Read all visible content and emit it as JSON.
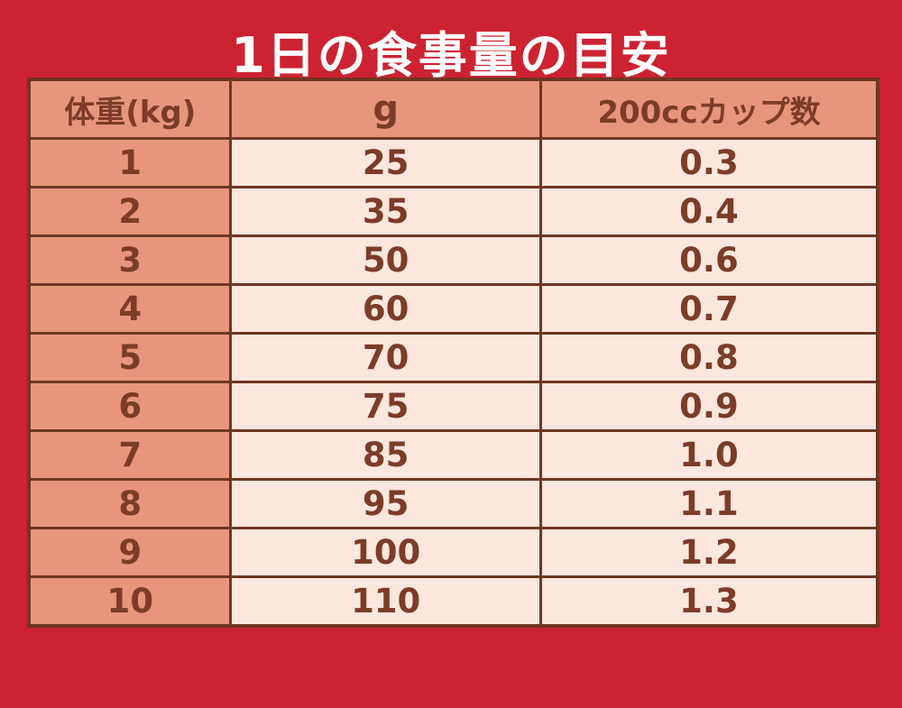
{
  "title": "1日の食事量の目安",
  "chart_data": {
    "type": "table",
    "title": "1日の食事量の目安",
    "columns": [
      "体重(kg)",
      "g",
      "200ccカップ数"
    ],
    "rows": [
      [
        "1",
        "25",
        "0.3"
      ],
      [
        "2",
        "35",
        "0.4"
      ],
      [
        "3",
        "50",
        "0.6"
      ],
      [
        "4",
        "60",
        "0.7"
      ],
      [
        "5",
        "70",
        "0.8"
      ],
      [
        "6",
        "75",
        "0.9"
      ],
      [
        "7",
        "85",
        "1.0"
      ],
      [
        "8",
        "95",
        "1.1"
      ],
      [
        "9",
        "100",
        "1.2"
      ],
      [
        "10",
        "110",
        "1.3"
      ]
    ]
  },
  "colors": {
    "background_red": "#cd2231",
    "header_salmon": "#e8957d",
    "cell_cream": "#fbe7dd",
    "border_brown": "#6f3722",
    "text_brown": "#7c3c28",
    "title_white": "#ffffff"
  }
}
